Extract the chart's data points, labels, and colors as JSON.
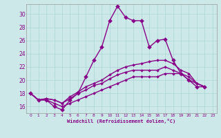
{
  "xlabel": "Windchill (Refroidissement éolien,°C)",
  "background_color": "#cce8e8",
  "line_color": "#880088",
  "grid_color": "#aad4d4",
  "xlim": [
    -0.5,
    23.5
  ],
  "ylim": [
    15.0,
    31.5
  ],
  "yticks": [
    16,
    18,
    20,
    22,
    24,
    26,
    28,
    30
  ],
  "xticks": [
    0,
    1,
    2,
    3,
    4,
    5,
    6,
    7,
    8,
    9,
    10,
    11,
    12,
    13,
    14,
    15,
    16,
    17,
    18,
    19,
    20,
    21,
    22,
    23
  ],
  "series": [
    [
      18.0,
      17.0,
      17.0,
      16.0,
      15.5,
      17.0,
      18.0,
      20.5,
      23.0,
      25.0,
      29.0,
      31.2,
      29.5,
      29.0,
      29.0,
      25.0,
      26.0,
      26.2,
      23.0,
      21.0,
      20.0,
      19.0,
      19.0
    ],
    [
      18.0,
      17.0,
      17.2,
      17.0,
      16.5,
      17.5,
      18.2,
      19.0,
      19.5,
      20.0,
      20.8,
      21.5,
      22.0,
      22.3,
      22.5,
      22.8,
      23.0,
      23.0,
      22.5,
      21.5,
      21.0,
      19.5,
      19.0
    ],
    [
      18.0,
      17.0,
      17.2,
      17.0,
      16.5,
      17.2,
      18.0,
      18.5,
      19.2,
      19.5,
      20.2,
      20.8,
      21.2,
      21.5,
      21.5,
      21.5,
      21.5,
      22.0,
      21.5,
      21.0,
      20.5,
      19.5,
      19.0
    ],
    [
      18.0,
      17.0,
      17.0,
      16.5,
      16.0,
      16.5,
      17.0,
      17.5,
      18.0,
      18.5,
      19.0,
      19.5,
      20.0,
      20.5,
      20.5,
      20.5,
      20.5,
      21.0,
      21.0,
      21.0,
      20.0,
      19.5,
      19.0
    ]
  ]
}
